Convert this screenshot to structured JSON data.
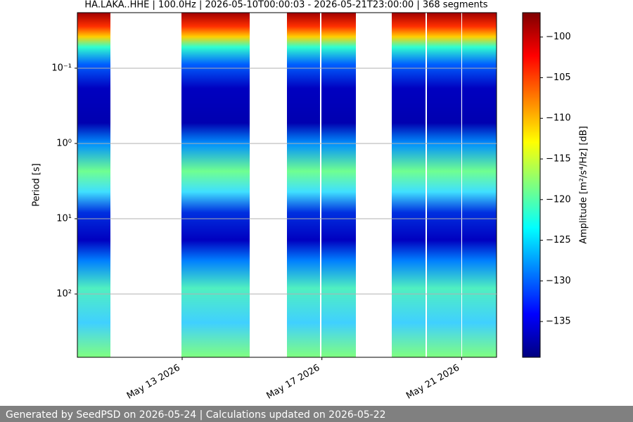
{
  "chart_data": {
    "type": "spectrogram",
    "title": "HA.LAKA..HHE | 100.0Hz | 2026-05-10T00:00:03 - 2026-05-21T23:00:00 | 368 segments",
    "y_label": "Period [s]",
    "log_y": true,
    "y_inverted": true,
    "grid": true,
    "ylim": [
      0.0183,
      693
    ],
    "yticks": [
      {
        "value": 0.1,
        "label": "10⁻¹"
      },
      {
        "value": 1,
        "label": "10⁰"
      },
      {
        "value": 10,
        "label": "10¹"
      },
      {
        "value": 100,
        "label": "10²"
      }
    ],
    "xlim": [
      "2026-05-10",
      "2026-05-22"
    ],
    "xticks": [
      {
        "value": "2026-05-13",
        "label": "May 13 2026"
      },
      {
        "value": "2026-05-17",
        "label": "May 17 2026"
      },
      {
        "value": "2026-05-21",
        "label": "May 21 2026"
      }
    ],
    "colorbar_label": "Amplitude [m²/s⁴/Hz] [dB]",
    "clim": [
      -139.4,
      -97
    ],
    "cticks": [
      {
        "value": -100,
        "label": "−100"
      },
      {
        "value": -105,
        "label": "−105"
      },
      {
        "value": -110,
        "label": "−110"
      },
      {
        "value": -115,
        "label": "−115"
      },
      {
        "value": -120,
        "label": "−120"
      },
      {
        "value": -125,
        "label": "−125"
      },
      {
        "value": -130,
        "label": "−130"
      },
      {
        "value": -135,
        "label": "−135"
      }
    ]
  },
  "footer": "Generated by SeedPSD on 2026-05-24 | Calculations updated on 2026-05-22"
}
